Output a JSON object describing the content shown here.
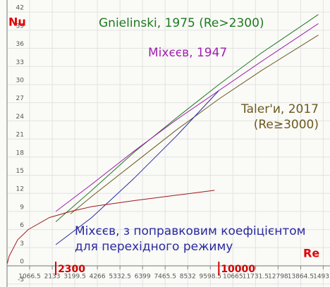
{
  "chart_data": {
    "type": "line",
    "y_label": "Nu",
    "x_label": "Re",
    "xlim": [
      0,
      15250
    ],
    "ylim": [
      -3.5,
      44
    ],
    "xticks": [
      1066.5,
      2133,
      3199.5,
      4266,
      5332.5,
      6399,
      7465.5,
      8532,
      9598.5,
      10665,
      11731.5,
      12798,
      13864.5,
      14931
    ],
    "yticks": [
      -3,
      0,
      3,
      6,
      9,
      12,
      15,
      18,
      21,
      24,
      27,
      30,
      33,
      36,
      39,
      42
    ],
    "marks": [
      2300,
      10000
    ],
    "marks_color": "#d00000",
    "grid": true,
    "series": [
      {
        "name": "Gnielinski, 1975 (Re>2300)",
        "color": "#1e7a1e",
        "x": [
          2300,
          4000,
          6000,
          8000,
          10000,
          12000,
          14700
        ],
        "values": [
          7.3,
          12.5,
          18.8,
          24.5,
          30,
          35.2,
          41.6
        ]
      },
      {
        "name": "Міхєєв, 1947",
        "color": "#a020b0",
        "x": [
          2300,
          4000,
          6000,
          8000,
          10000,
          12000,
          14700
        ],
        "values": [
          9.0,
          13.5,
          19.0,
          24.2,
          29.0,
          33.8,
          40.1
        ]
      },
      {
        "name": "Taler'и, 2017\n(Re≥3000)",
        "color": "#6b5a1e",
        "x": [
          3000,
          4000,
          6000,
          8000,
          10000,
          12000,
          14700
        ],
        "values": [
          8.6,
          11.5,
          17.0,
          22.5,
          27.6,
          32.3,
          38.2
        ]
      },
      {
        "name": "Міхєєв, з поправковим коефіцієнтом\nдля перехідного режиму",
        "color": "#2a2aa0",
        "x": [
          2300,
          4000,
          6000,
          8000,
          10000
        ],
        "values": [
          3.5,
          8.0,
          14.5,
          21.5,
          29.0
        ]
      },
      {
        "name": null,
        "color": "#a01818",
        "x": [
          10,
          100,
          500,
          1000,
          2000,
          3000,
          4000,
          6000,
          8000,
          9800
        ],
        "values": [
          0.4,
          1.6,
          4.3,
          6.0,
          8.0,
          9.0,
          9.8,
          10.8,
          11.7,
          12.5
        ]
      }
    ]
  }
}
